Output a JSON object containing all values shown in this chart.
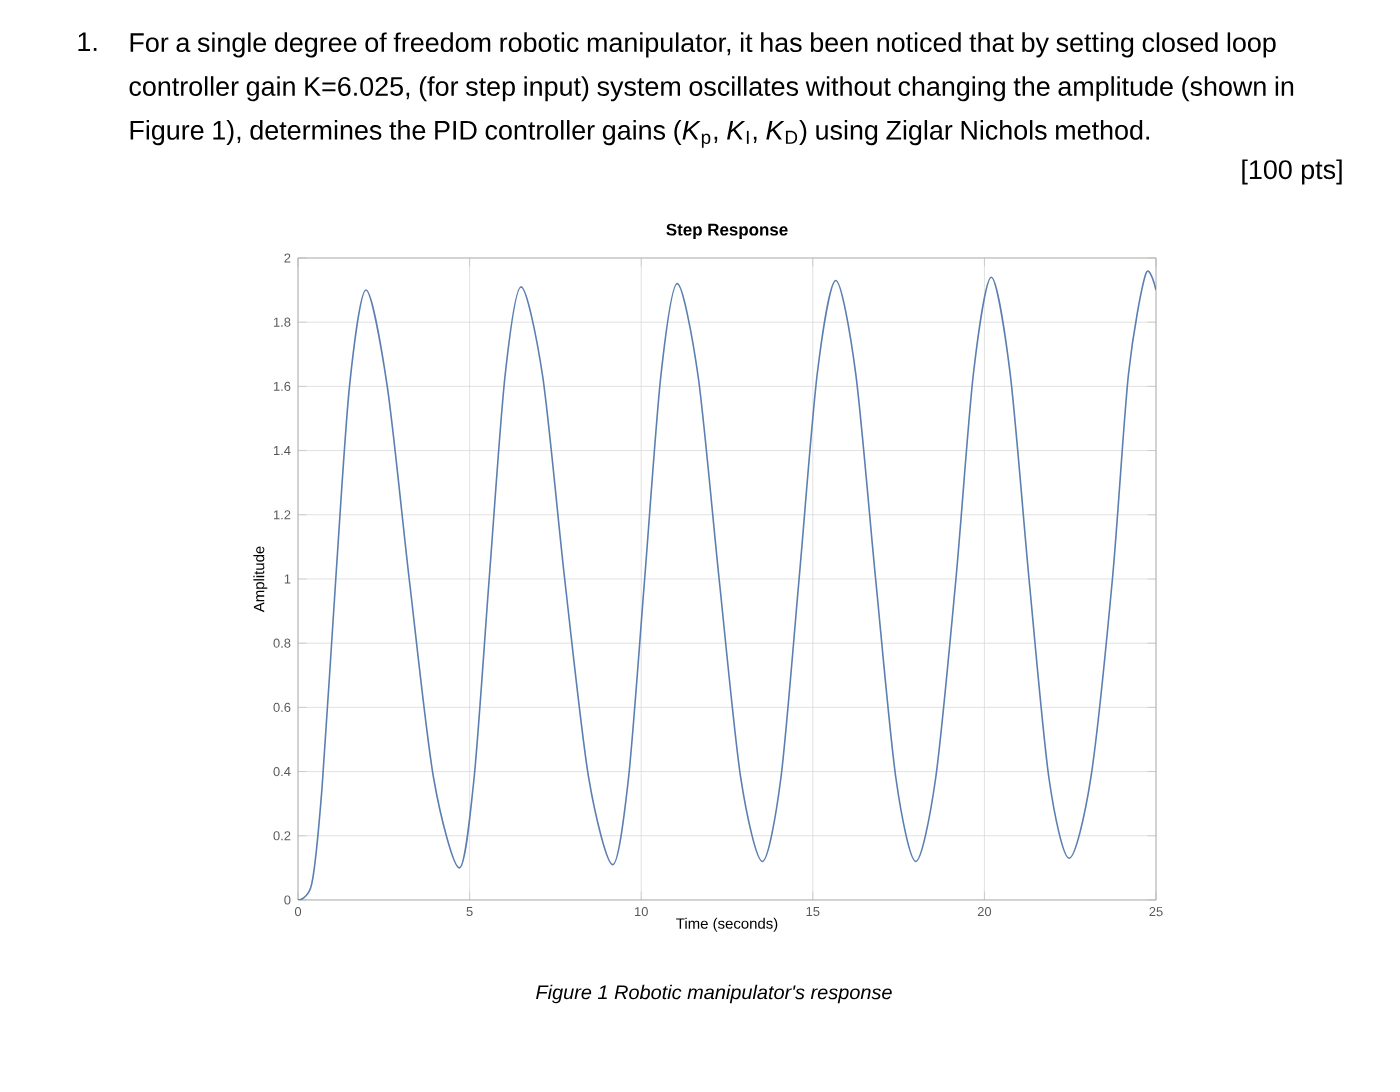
{
  "chart_data": {
    "type": "line",
    "title": "Step Response",
    "xlabel": "Time (seconds)",
    "ylabel": "Amplitude",
    "annotations": [
      "1.",
      "For a single degree of freedom robotic manipulator, it has been noticed that by setting closed loop controller gain K=6.025, (for step input) system oscillates without changing the amplitude (shown in Figure 1), determines the PID controller gains (*K*$_{p}$, *K*$_{I}$, *K*$_{D}$) using Ziglar Nichols method.",
      "[100 pts]",
      "Figure 1 Robotic manipulator's response"
    ],
    "x": [
      0,
      0.4,
      0.7,
      1.1,
      1.5,
      1.98,
      2.6,
      3.24,
      3.95,
      4.7,
      5.13,
      5.57,
      6.03,
      6.5,
      7.13,
      7.77,
      8.47,
      9.17,
      9.63,
      10.1,
      10.57,
      11.05,
      11.66,
      12.27,
      12.9,
      13.53,
      14.07,
      14.6,
      15.13,
      15.67,
      16.25,
      16.83,
      17.42,
      18.0,
      18.58,
      19.17,
      19.68,
      20.2,
      20.75,
      21.3,
      21.88,
      22.47,
      23.1,
      23.73,
      24.2,
      24.7,
      25
    ],
    "series": [
      {
        "color": "#5b7fb0",
        "values": [
          0,
          0.05,
          0.35,
          1.0,
          1.6,
          1.9,
          1.6,
          1.0,
          0.38,
          0.1,
          0.38,
          1.0,
          1.63,
          1.91,
          1.63,
          1.0,
          0.38,
          0.11,
          0.38,
          1.0,
          1.63,
          1.92,
          1.63,
          1.0,
          0.38,
          0.12,
          0.38,
          1.0,
          1.64,
          1.93,
          1.64,
          1.0,
          0.38,
          0.12,
          0.38,
          1.0,
          1.64,
          1.94,
          1.64,
          1.0,
          0.38,
          0.13,
          0.38,
          1.0,
          1.64,
          1.95,
          1.9
        ]
      }
    ],
    "xlim": [
      0,
      25
    ],
    "ylim": [
      0,
      2
    ],
    "xticks": [
      0,
      5,
      10,
      15,
      20,
      25
    ],
    "yticks": [
      0,
      0.2,
      0.4,
      0.6,
      0.8,
      1,
      1.2,
      1.4,
      1.6,
      1.8,
      2
    ],
    "grid": true,
    "marker": "none",
    "line_style": "solid"
  }
}
